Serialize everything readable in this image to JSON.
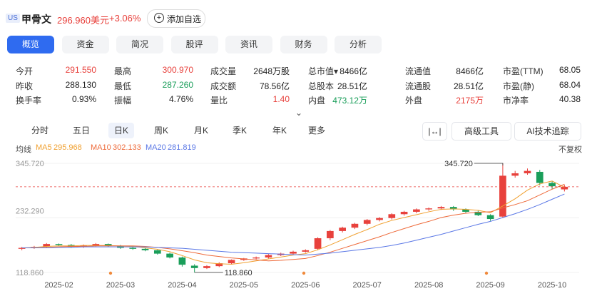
{
  "header": {
    "market": "US",
    "name": "甲骨文",
    "price": "296.960美元",
    "change": "+3.06%",
    "watch_button": "添加自选"
  },
  "tabs": [
    "概览",
    "资金",
    "简况",
    "股评",
    "资讯",
    "财务",
    "分析"
  ],
  "active_tab": 0,
  "stats": [
    [
      {
        "label": "今开",
        "value": "291.550",
        "tone": "up"
      },
      {
        "label": "最高",
        "value": "300.970",
        "tone": "up"
      },
      {
        "label": "成交量",
        "value": "2648万股"
      },
      {
        "label": "总市值▾",
        "value": "8466亿"
      },
      {
        "label": "流通值",
        "value": "8466亿"
      },
      {
        "label": "市盈(TTM)",
        "value": "68.05"
      }
    ],
    [
      {
        "label": "昨收",
        "value": "288.130"
      },
      {
        "label": "最低",
        "value": "287.260",
        "tone": "down"
      },
      {
        "label": "成交额",
        "value": "78.56亿"
      },
      {
        "label": "总股本",
        "value": "28.51亿"
      },
      {
        "label": "流通股",
        "value": "28.51亿"
      },
      {
        "label": "市盈(静)",
        "value": "68.04"
      }
    ],
    [
      {
        "label": "换手率",
        "value": "0.93%"
      },
      {
        "label": "振幅",
        "value": "4.76%"
      },
      {
        "label": "量比",
        "value": "1.40",
        "tone": "up"
      },
      {
        "label": "内盘",
        "value": "473.12万",
        "tone": "down"
      },
      {
        "label": "外盘",
        "value": "2175万",
        "tone": "up"
      },
      {
        "label": "市净率",
        "value": "40.38"
      }
    ]
  ],
  "periods": [
    "分时",
    "五日",
    "日K",
    "周K",
    "月K",
    "季K",
    "年K",
    "更多"
  ],
  "active_period": 2,
  "tools": [
    "高级工具",
    "AI技术追踪"
  ],
  "ma_label": "均线",
  "adjust": "不复权",
  "chart_data": {
    "type": "candlestick",
    "up_color": "#e8413c",
    "down_color": "#1a9e5a",
    "categories": [
      null,
      null,
      null,
      "2025-02",
      null,
      null,
      null,
      null,
      "2025-03",
      null,
      null,
      null,
      null,
      "2025-04",
      null,
      null,
      null,
      null,
      "2025-05",
      null,
      null,
      null,
      null,
      "2025-06",
      null,
      null,
      null,
      null,
      "2025-07",
      null,
      null,
      null,
      null,
      "2025-08",
      null,
      null,
      null,
      null,
      "2025-09",
      null,
      null,
      null,
      null,
      "2025-10",
      null
    ],
    "open": [
      168,
      170,
      173,
      178,
      176,
      172,
      175,
      178,
      174,
      170,
      168,
      165,
      158,
      150,
      133,
      128,
      132,
      138,
      145,
      148,
      150,
      155,
      158,
      162,
      168,
      190,
      205,
      212,
      220,
      228,
      232,
      240,
      245,
      250,
      252,
      255,
      250,
      245,
      238,
      235,
      320,
      325,
      328,
      305,
      291.55
    ],
    "high": [
      172,
      174,
      180,
      179,
      178,
      177,
      180,
      179,
      176,
      172,
      170,
      166,
      160,
      152,
      136,
      134,
      140,
      146,
      149,
      152,
      157,
      160,
      164,
      167,
      192,
      207,
      214,
      222,
      230,
      234,
      242,
      247,
      252,
      254,
      257,
      257,
      252,
      247,
      240,
      345.72,
      330,
      335,
      332,
      308,
      300.97
    ],
    "low": [
      165,
      168,
      171,
      174,
      170,
      170,
      173,
      172,
      168,
      166,
      163,
      156,
      148,
      131,
      118.86,
      126,
      130,
      136,
      143,
      146,
      148,
      153,
      156,
      160,
      165,
      186,
      202,
      209,
      217,
      225,
      229,
      237,
      242,
      247,
      249,
      247,
      242,
      236,
      226,
      232,
      316,
      322,
      300,
      292,
      287.26
    ],
    "close": [
      170,
      172,
      178,
      176,
      172,
      175,
      178,
      174,
      170,
      168,
      165,
      158,
      150,
      135,
      128,
      132,
      138,
      145,
      148,
      150,
      155,
      158,
      162,
      165,
      190,
      205,
      212,
      220,
      228,
      232,
      240,
      245,
      250,
      252,
      255,
      250,
      245,
      238,
      230,
      320,
      325,
      330,
      305,
      298,
      296.96
    ],
    "series": [
      {
        "name": "MA5",
        "value_label": "295.968",
        "color": "#f0a030",
        "values": [
          170,
          171,
          173,
          174,
          174,
          175,
          175,
          175,
          174,
          173,
          170,
          167,
          162,
          154,
          145,
          139,
          137,
          136,
          139,
          143,
          147,
          151,
          155,
          158,
          166,
          176,
          187,
          198,
          208,
          219,
          227,
          233,
          239,
          245,
          250,
          251,
          250,
          248,
          243,
          257,
          272,
          290,
          303,
          309,
          295.968
        ]
      },
      {
        "name": "MA10",
        "value_label": "302.133",
        "color": "#ee6a3a",
        "values": [
          170,
          170,
          171,
          172,
          173,
          173,
          174,
          174,
          174,
          174,
          173,
          171,
          168,
          164,
          160,
          155,
          152,
          149,
          147,
          145,
          143,
          144,
          146,
          148,
          154,
          161,
          169,
          177,
          185,
          193,
          202,
          210,
          218,
          225,
          233,
          238,
          242,
          244,
          245,
          253,
          260,
          268,
          280,
          292,
          302.133
        ]
      },
      {
        "name": "MA20",
        "value_label": "281.819",
        "color": "#5b78e6",
        "values": [
          170,
          170,
          170,
          171,
          171,
          172,
          172,
          172,
          172,
          172,
          172,
          171,
          170,
          169,
          167,
          165,
          163,
          161,
          160,
          159,
          158,
          157,
          156,
          155,
          157,
          159,
          162,
          165,
          168,
          171,
          175,
          180,
          186,
          192,
          198,
          205,
          212,
          219,
          225,
          233,
          241,
          250,
          260,
          271,
          281.819
        ]
      }
    ],
    "ylim": [
      118.86,
      345.72
    ],
    "yticks": [
      {
        "value": 345.72,
        "label": "345.720"
      },
      {
        "value": 232.29,
        "label": "232.290"
      },
      {
        "value": 118.86,
        "label": "118.860"
      }
    ],
    "annotations": {
      "max_label": "345.720",
      "min_label": "118.860"
    }
  }
}
